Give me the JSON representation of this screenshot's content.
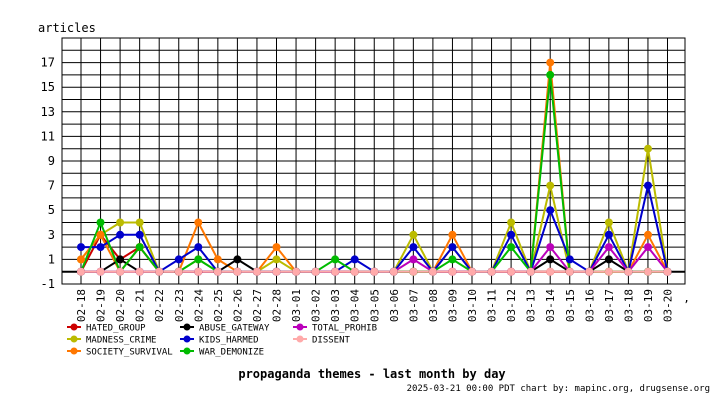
{
  "chart_data": {
    "type": "line",
    "title": "propaganda themes - last month by day",
    "ylabel": "articles",
    "xlabel": "",
    "ylim": [
      -1,
      19
    ],
    "yticks": [
      -1,
      1,
      3,
      5,
      7,
      9,
      11,
      13,
      15,
      17
    ],
    "grid": true,
    "legend_position": "bottom-left",
    "footer": "2025-03-21 00:00 PDT  chart by: mapinc.org, drugsense.org",
    "corner_mark": "’",
    "categories": [
      "02-18",
      "02-19",
      "02-20",
      "02-21",
      "02-22",
      "02-23",
      "02-24",
      "02-25",
      "02-26",
      "02-27",
      "02-28",
      "03-01",
      "03-02",
      "03-03",
      "03-04",
      "03-05",
      "03-06",
      "03-07",
      "03-08",
      "03-09",
      "03-10",
      "03-11",
      "03-12",
      "03-13",
      "03-14",
      "03-15",
      "03-16",
      "03-17",
      "03-18",
      "03-19",
      "03-20"
    ],
    "series": [
      {
        "name": "HATED_GROUP",
        "color": "#cc0000",
        "values": [
          0,
          3,
          1,
          2,
          0,
          0,
          0,
          0,
          0,
          0,
          0,
          0,
          0,
          0,
          0,
          0,
          0,
          0,
          0,
          0,
          0,
          0,
          0,
          0,
          0,
          0,
          0,
          0,
          0,
          0,
          0
        ]
      },
      {
        "name": "MADNESS_CRIME",
        "color": "#bbbb00",
        "values": [
          1,
          3,
          4,
          4,
          0,
          0,
          1,
          0,
          0,
          0,
          1,
          0,
          0,
          0,
          0,
          0,
          0,
          3,
          0,
          2,
          0,
          0,
          4,
          0,
          7,
          0,
          0,
          4,
          0,
          10,
          0
        ]
      },
      {
        "name": "SOCIETY_SURVIVAL",
        "color": "#ff7700",
        "values": [
          1,
          3,
          0,
          2,
          0,
          0,
          4,
          1,
          0,
          0,
          2,
          0,
          0,
          0,
          0,
          0,
          0,
          0,
          0,
          3,
          0,
          0,
          0,
          0,
          17,
          0,
          0,
          0,
          0,
          3,
          0
        ]
      },
      {
        "name": "ABUSE_GATEWAY",
        "color": "#000000",
        "values": [
          0,
          0,
          1,
          0,
          0,
          0,
          0,
          0,
          1,
          0,
          0,
          0,
          0,
          0,
          0,
          0,
          0,
          0,
          0,
          0,
          0,
          0,
          0,
          0,
          1,
          0,
          0,
          1,
          0,
          0,
          0
        ]
      },
      {
        "name": "KIDS_HARMED",
        "color": "#0000cc",
        "values": [
          2,
          2,
          3,
          3,
          0,
          1,
          2,
          0,
          0,
          0,
          0,
          0,
          0,
          0,
          1,
          0,
          0,
          2,
          0,
          2,
          0,
          0,
          3,
          0,
          5,
          1,
          0,
          3,
          0,
          7,
          0
        ]
      },
      {
        "name": "WAR_DEMONIZE",
        "color": "#00bb00",
        "values": [
          0,
          4,
          0,
          2,
          0,
          0,
          1,
          0,
          0,
          0,
          0,
          0,
          0,
          1,
          0,
          0,
          0,
          0,
          0,
          1,
          0,
          0,
          2,
          0,
          16,
          0,
          0,
          0,
          0,
          0,
          0
        ]
      },
      {
        "name": "TOTAL_PROHIB",
        "color": "#bb00bb",
        "values": [
          0,
          0,
          0,
          0,
          0,
          0,
          0,
          0,
          0,
          0,
          0,
          0,
          0,
          0,
          0,
          0,
          0,
          1,
          0,
          0,
          0,
          0,
          0,
          0,
          2,
          0,
          0,
          2,
          0,
          2,
          0
        ]
      },
      {
        "name": "DISSENT",
        "color": "#ffaaaa",
        "values": [
          0,
          0,
          0,
          0,
          0,
          0,
          0,
          0,
          0,
          0,
          0,
          0,
          0,
          0,
          0,
          0,
          0,
          0,
          0,
          0,
          0,
          0,
          0,
          0,
          0,
          0,
          0,
          0,
          0,
          0,
          0
        ]
      }
    ]
  }
}
